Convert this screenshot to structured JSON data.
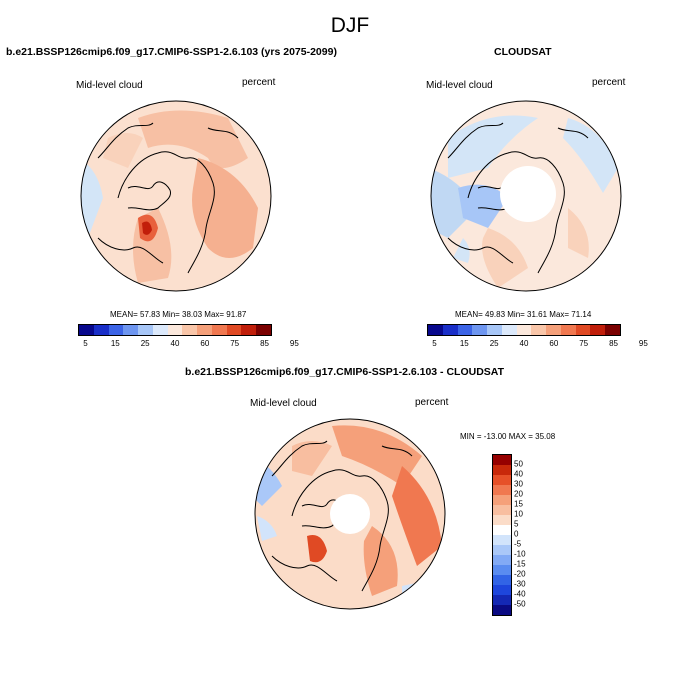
{
  "title": "DJF",
  "panels": {
    "model": {
      "title": "b.e21.BSSP126cmip6.f09_g17.CMIP6-SSP1-2.6.103 (yrs 2075-2099)",
      "left_label": "Mid-level cloud",
      "right_label": "percent",
      "stats": "MEAN= 57.83  Min= 38.03  Max= 91.87"
    },
    "obs": {
      "title": "CLOUDSAT",
      "left_label": "Mid-level cloud",
      "right_label": "percent",
      "stats": "MEAN= 49.83  Min= 31.61  Max= 71.14"
    },
    "diff": {
      "title": "b.e21.BSSP126cmip6.f09_g17.CMIP6-SSP1-2.6.103 - CLOUDSAT",
      "left_label": "Mid-level cloud",
      "right_label": "percent",
      "stats": "MIN = -13.00 MAX =  35.08"
    }
  },
  "colorbar_abs": {
    "colors": [
      "#08088c",
      "#1a2fc8",
      "#3c64e6",
      "#6e96f0",
      "#a7c6f7",
      "#dce9fb",
      "#fbe8dc",
      "#f9c6a9",
      "#f5a07a",
      "#f07850",
      "#e04a24",
      "#c01e0a",
      "#7a0000"
    ],
    "ticks": [
      "5",
      "15",
      "25",
      "40",
      "60",
      "75",
      "85",
      "95"
    ]
  },
  "colorbar_diff": {
    "colors": [
      "#0a0a82",
      "#1428b4",
      "#1e46dc",
      "#3264e6",
      "#5a8cf0",
      "#82aaf5",
      "#aac8f8",
      "#d2e4fb",
      "#ffffff",
      "#fbdcc8",
      "#f8bea0",
      "#f5a07a",
      "#f07850",
      "#e65028",
      "#c8280a",
      "#960000"
    ],
    "ticks": [
      "50",
      "40",
      "30",
      "20",
      "15",
      "10",
      "5",
      "0",
      "-5",
      "-10",
      "-15",
      "-20",
      "-30",
      "-40",
      "-50"
    ]
  }
}
